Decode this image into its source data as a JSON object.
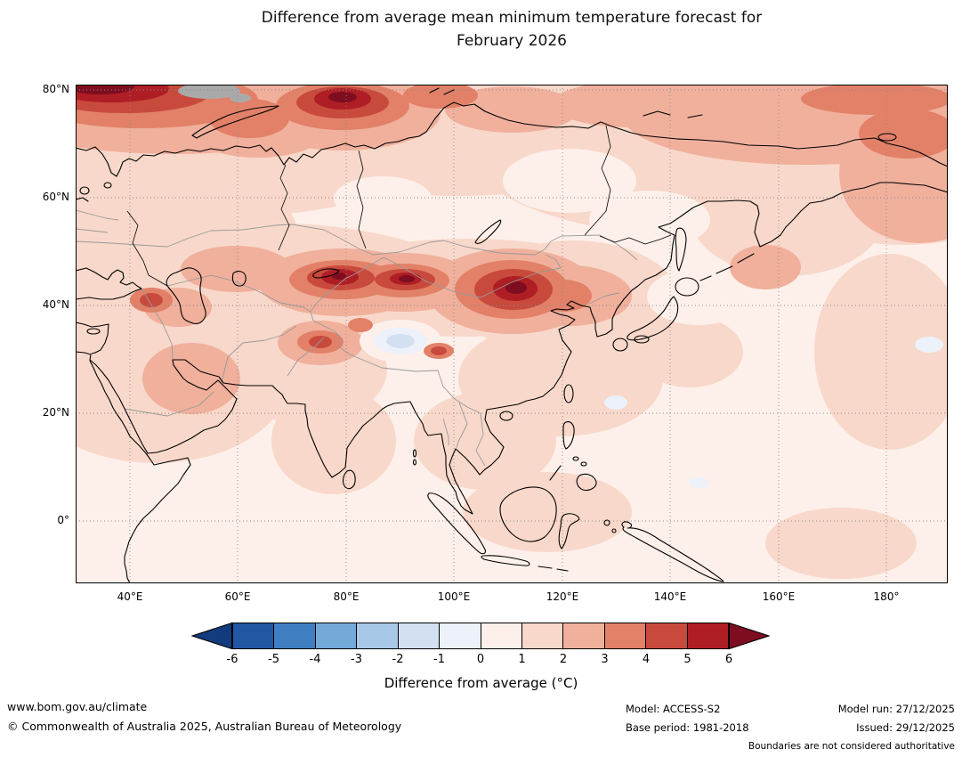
{
  "title": {
    "line1": "Difference from average mean minimum temperature forecast for",
    "line2": "February 2026"
  },
  "map": {
    "lat_ticks": [
      "80°N",
      "60°N",
      "40°N",
      "20°N",
      "0°"
    ],
    "lon_ticks": [
      "40°E",
      "60°E",
      "80°E",
      "100°E",
      "120°E",
      "140°E",
      "160°E",
      "180°"
    ]
  },
  "colorbar": {
    "label": "Difference from average (°C)",
    "tick_labels": [
      "-6",
      "-5",
      "-4",
      "-3",
      "-2",
      "-1",
      "0",
      "1",
      "2",
      "3",
      "4",
      "5",
      "6"
    ],
    "segment_colors": [
      "#2257a4",
      "#3f7fc1",
      "#74a9d8",
      "#a8c8e8",
      "#d2e0f2",
      "#ecf1fa",
      "#fdf0ea",
      "#f8d8ca",
      "#f0b09c",
      "#e28168",
      "#c84a3c",
      "#ae1e24"
    ],
    "tip_left_color": "#123b7d",
    "tip_right_color": "#7f0d20"
  },
  "footer": {
    "left_line1": "www.bom.gov.au/climate",
    "left_line2": "© Commonwealth of Australia 2025, Australian Bureau of Meteorology",
    "model": "Model: ACCESS-S2",
    "model_run": "Model run: 27/12/2025",
    "base_period": "Base period: 1981-2018",
    "issued": "Issued: 29/12/2025",
    "boundaries_note": "Boundaries are not considered authoritative"
  },
  "chart_data": {
    "type": "heatmap",
    "subtype": "filled-contour temperature anomaly map (Asia region)",
    "title": "Difference from average mean minimum temperature forecast for February 2026",
    "colorbar_label": "Difference from average (°C)",
    "colorbar_ticks": [
      -6,
      -5,
      -4,
      -3,
      -2,
      -1,
      0,
      1,
      2,
      3,
      4,
      5,
      6
    ],
    "colorbar_extends_both_ends": true,
    "x_axis": {
      "tick_labels": [
        "40°E",
        "60°E",
        "80°E",
        "100°E",
        "120°E",
        "140°E",
        "160°E",
        "180°"
      ],
      "range_deg_east": [
        30,
        192
      ]
    },
    "y_axis": {
      "tick_labels": [
        "80°N",
        "60°N",
        "40°N",
        "20°N",
        "0°"
      ],
      "range_deg_north": [
        -12,
        81
      ]
    },
    "grid": "dotted gray at labeled parallels/meridians",
    "features": [
      {
        "region": "Arctic coast 30–50°E near 79–80°N (top-left corner)",
        "anomaly_c": "+5 to >+6"
      },
      {
        "region": "Kara Sea / Novaya Zemlya ~65–80°E, 74–80°N",
        "anomaly_c": "+3 to +6"
      },
      {
        "region": "Central Asia / Tien Shan ~75–80°E, 42–47°N",
        "anomaly_c": "+4 to >+6"
      },
      {
        "region": "Altai / western Mongolia ~88–92°E, 43–46°N",
        "anomaly_c": "+4 to +6"
      },
      {
        "region": "Mongolia / Gobi ~105–115°E, 40–47°N",
        "anomaly_c": "+4 to >+6"
      },
      {
        "region": "Tibetan Plateau ~88–92°E, 31–34°N",
        "anomaly_c": "-1 to -2 (only cool pocket)"
      },
      {
        "region": "Caucasus ~43°E, 41°N",
        "anomaly_c": "+3 to +5"
      },
      {
        "region": "Most of Eurasia and the Middle East",
        "anomaly_c": "+1 to +3"
      },
      {
        "region": "Bering Sea / NW Pacific 60–80°N",
        "anomaly_c": "+2 to +3"
      },
      {
        "region": "Tropical oceans, South and Southeast Asia",
        "anomaly_c": "0 to +2"
      }
    ],
    "model": "ACCESS-S2",
    "base_period": "1981-2018",
    "model_run": "27/12/2025",
    "issued": "29/12/2025"
  }
}
